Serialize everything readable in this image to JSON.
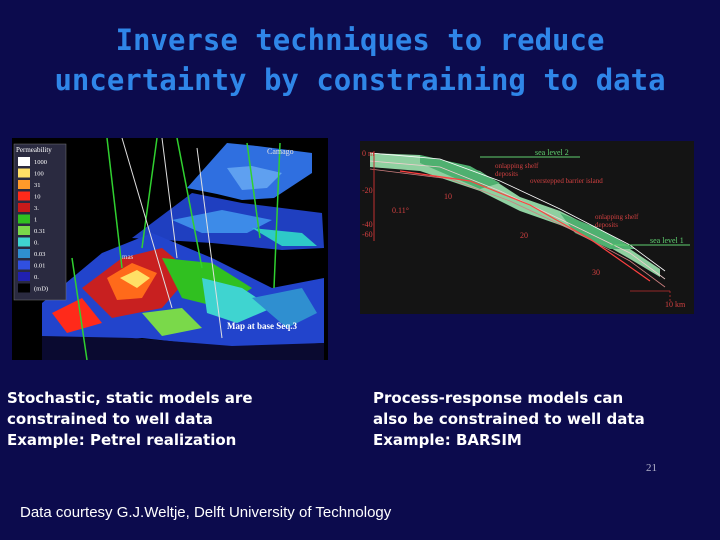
{
  "slide": {
    "title_line1": "Inverse techniques to reduce",
    "title_line2": "uncertainty by constraining to data",
    "left_caption": [
      "Stochastic, static models are",
      "constrained to well data",
      "Example: Petrel realization"
    ],
    "right_caption": [
      "Process-response models can",
      "also be constrained to well data",
      "Example: BARSIM"
    ],
    "page_number": "21",
    "credit": "Data courtesy G.J.Weltje, Delft University of Technology"
  },
  "petrel_figure": {
    "legend_title": "Permeability",
    "legend_values": [
      "1000",
      "100",
      "31",
      "10",
      "3.",
      "1",
      "0.31",
      "0.",
      "0.03",
      "0.01",
      "0.",
      "(mD)"
    ],
    "legend_colors": [
      "#ffffff",
      "#ffe066",
      "#ff9a2a",
      "#ff2a1a",
      "#c81a1a",
      "#30c020",
      "#7ad94a",
      "#3fd4d0",
      "#2f8fd0",
      "#3050e0",
      "#2020b0",
      "#000000"
    ],
    "label_top": "Camago",
    "label_mid": "mas",
    "map_label": "Map at base Seq.3"
  },
  "barsim_figure": {
    "depth_labels": [
      "0 m",
      "-20",
      "-40",
      "-60"
    ],
    "sea_level_2": "sea level 2",
    "sea_level_1": "sea level 1",
    "label_shelf_1": [
      "onlapping shelf",
      "deposits"
    ],
    "label_barrier": "overstepped barrier island",
    "label_shelf_2": [
      "onlapping shelf",
      "deposits"
    ],
    "time_labels": [
      "10",
      "20",
      "30"
    ],
    "angle_label": "0.11°",
    "distance_label": "10 km"
  }
}
